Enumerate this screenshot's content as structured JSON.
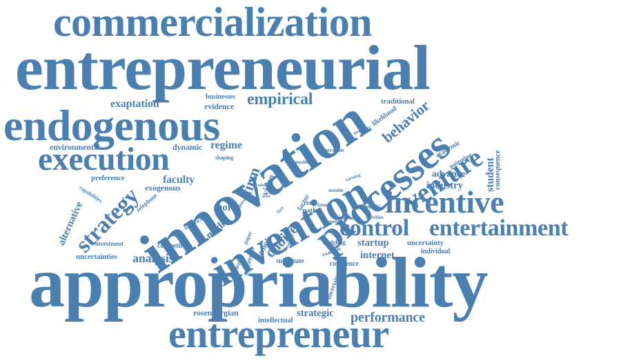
{
  "colors": {
    "word": "#4a7fb0",
    "background": "#ffffff"
  },
  "words": [
    {
      "id": "commercialization",
      "text": "commercialization"
    },
    {
      "id": "entrepreneurial",
      "text": "entrepreneurial"
    },
    {
      "id": "endogenous",
      "text": "endogenous"
    },
    {
      "id": "execution",
      "text": "execution"
    },
    {
      "id": "innovation",
      "text": "innovation"
    },
    {
      "id": "invention",
      "text": "invention"
    },
    {
      "id": "processes",
      "text": "processes"
    },
    {
      "id": "incentive",
      "text": "incentive"
    },
    {
      "id": "control",
      "text": "control"
    },
    {
      "id": "entertainment",
      "text": "entertainment"
    },
    {
      "id": "appropriability",
      "text": "appropriability"
    },
    {
      "id": "entrepreneur",
      "text": "entrepreneur"
    },
    {
      "id": "venture",
      "text": "venture"
    },
    {
      "id": "strategy",
      "text": "strategy"
    },
    {
      "id": "empirical",
      "text": "empirical"
    },
    {
      "id": "exaptation",
      "text": "exaptation"
    },
    {
      "id": "evidence",
      "text": "evidence"
    },
    {
      "id": "businesses",
      "text": "businesses"
    },
    {
      "id": "behavior",
      "text": "behavior"
    },
    {
      "id": "traditional",
      "text": "traditional"
    },
    {
      "id": "likelihood",
      "text": "likelihood"
    },
    {
      "id": "property",
      "text": "property"
    },
    {
      "id": "academic",
      "text": "academic"
    },
    {
      "id": "patenting",
      "text": "patenting"
    },
    {
      "id": "advance",
      "text": "advance"
    },
    {
      "id": "student",
      "text": "student"
    },
    {
      "id": "consequence",
      "text": "consequence"
    },
    {
      "id": "industry",
      "text": "industry"
    },
    {
      "id": "environmental",
      "text": "environmental"
    },
    {
      "id": "dynamic",
      "text": "dynamic"
    },
    {
      "id": "regime",
      "text": "regime"
    },
    {
      "id": "shaping",
      "text": "shaping"
    },
    {
      "id": "operation",
      "text": "operation"
    },
    {
      "id": "unable",
      "text": "unable"
    },
    {
      "id": "preference",
      "text": "preference"
    },
    {
      "id": "exogenous",
      "text": "exogenous"
    },
    {
      "id": "faculty",
      "text": "faculty"
    },
    {
      "id": "capabilities",
      "text": "capabilities"
    },
    {
      "id": "telephone",
      "text": "telephone"
    },
    {
      "id": "alternative",
      "text": "alternative"
    },
    {
      "id": "firm",
      "text": "firm"
    },
    {
      "id": "video",
      "text": "video"
    },
    {
      "id": "more",
      "text": "more"
    },
    {
      "id": "media",
      "text": "media"
    },
    {
      "id": "historical",
      "text": "historical"
    },
    {
      "id": "require",
      "text": "require"
    },
    {
      "id": "subtle",
      "text": "subtle"
    },
    {
      "id": "arise",
      "text": "arise"
    },
    {
      "id": "choice",
      "text": "choice"
    },
    {
      "id": "face",
      "text": "face"
    },
    {
      "id": "factor",
      "text": "factor"
    },
    {
      "id": "notable",
      "text": "notable"
    },
    {
      "id": "earning",
      "text": "earning"
    },
    {
      "id": "rent",
      "text": "rent"
    },
    {
      "id": "path",
      "text": "path"
    },
    {
      "id": "future",
      "text": "future"
    },
    {
      "id": "economic",
      "text": "economic"
    },
    {
      "id": "innovator",
      "text": "innovator"
    },
    {
      "id": "activities",
      "text": "activities"
    },
    {
      "id": "speed",
      "text": "speed"
    },
    {
      "id": "investment",
      "text": "investment"
    },
    {
      "id": "competitor",
      "text": "competitor"
    },
    {
      "id": "uncertainties",
      "text": "uncertainties"
    },
    {
      "id": "analysis",
      "text": "analysis"
    },
    {
      "id": "sample",
      "text": "sample"
    },
    {
      "id": "paper",
      "text": "paper"
    },
    {
      "id": "successful",
      "text": "successful"
    },
    {
      "id": "display",
      "text": "display"
    },
    {
      "id": "formal",
      "text": "formal"
    },
    {
      "id": "fledgling",
      "text": "fledgling"
    },
    {
      "id": "example",
      "text": "example"
    },
    {
      "id": "startup",
      "text": "startup"
    },
    {
      "id": "uncertainty",
      "text": "uncertainty"
    },
    {
      "id": "individual",
      "text": "individual"
    },
    {
      "id": "internet",
      "text": "internet"
    },
    {
      "id": "substitute",
      "text": "substitute"
    },
    {
      "id": "coherence",
      "text": "coherence"
    },
    {
      "id": "uncertain",
      "text": "uncertain"
    },
    {
      "id": "rosenbergian",
      "text": "rosenbergian"
    },
    {
      "id": "strategic",
      "text": "strategic"
    },
    {
      "id": "intellectual",
      "text": "intellectual"
    },
    {
      "id": "performance",
      "text": "performance"
    }
  ]
}
